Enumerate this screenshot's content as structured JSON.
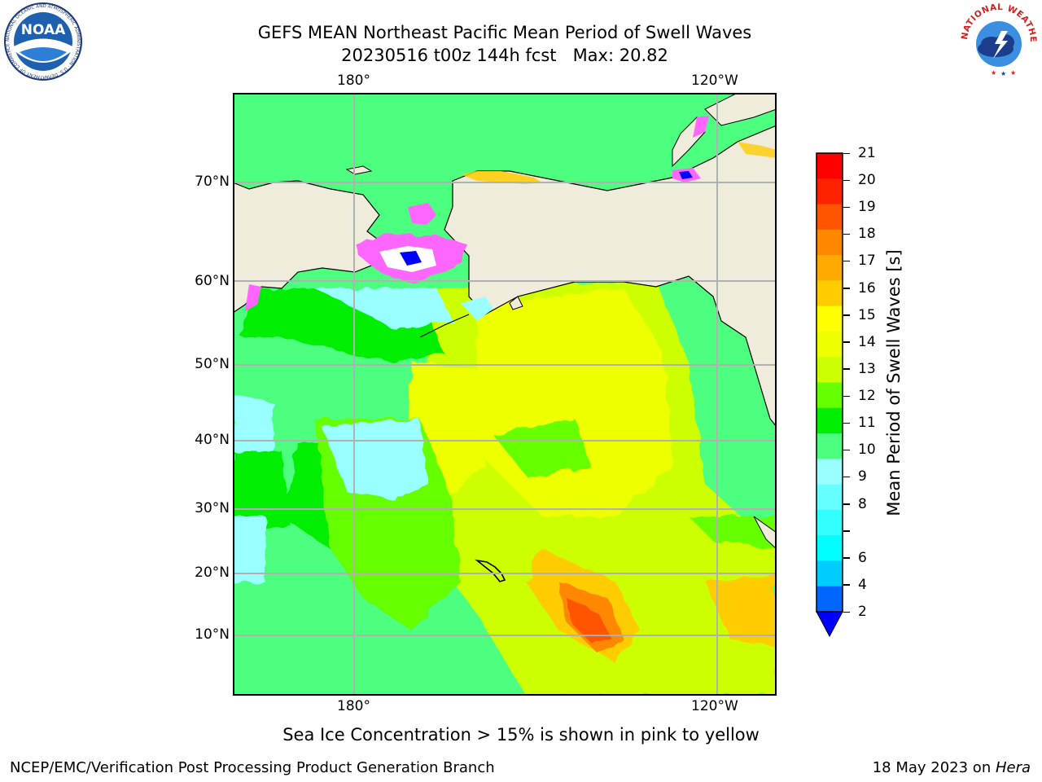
{
  "header": {
    "title_line1": "GEFS MEAN Northeast Pacific Mean Period of Swell Waves",
    "title_line2": "20230516 t00z 144h fcst   Max: 20.82"
  },
  "logos": {
    "noaa_text": "NOAA",
    "noaa_ring_text": "NATIONAL OCEANIC AND ATMOSPHERIC ADMINISTRATION · U.S. DEPARTMENT OF COMMERCE",
    "nws_ring_text": "NATIONAL WEATHER SERVICE"
  },
  "map": {
    "lon_labels_top": [
      "180°",
      "120°W"
    ],
    "lon_labels_bottom": [
      "180°",
      "120°W"
    ],
    "lat_labels": [
      "70°N",
      "60°N",
      "50°N",
      "40°N",
      "30°N",
      "20°N",
      "10°N"
    ]
  },
  "colorbar": {
    "title": "Mean Period of Swell Waves [s]",
    "levels": [
      "2",
      "4",
      "6",
      "7",
      "8",
      "9",
      "10",
      "11",
      "12",
      "13",
      "14",
      "15",
      "16",
      "17",
      "18",
      "19",
      "20",
      "21"
    ],
    "tick_labels": [
      "2",
      "4",
      "6",
      "8",
      "9",
      "10",
      "11",
      "12",
      "13",
      "14",
      "15",
      "16",
      "17",
      "18",
      "19",
      "20",
      "21"
    ],
    "colors": [
      "#0066ff",
      "#00ccff",
      "#00ffff",
      "#33ffff",
      "#66ffff",
      "#99ffff",
      "#4cff7f",
      "#00ee00",
      "#66ff00",
      "#ccff00",
      "#eeff00",
      "#ffff00",
      "#ffcc00",
      "#ffaa00",
      "#ff8800",
      "#ff5500",
      "#ff2200",
      "#ff0000"
    ],
    "extend_color": "#0000ff"
  },
  "note": "Sea Ice Concentration > 15% is shown in pink to yellow",
  "footer": {
    "left": "NCEP/EMC/Verification Post Processing Product Generation Branch",
    "right_date": "18 May 2023 on ",
    "right_machine": "Hera"
  }
}
